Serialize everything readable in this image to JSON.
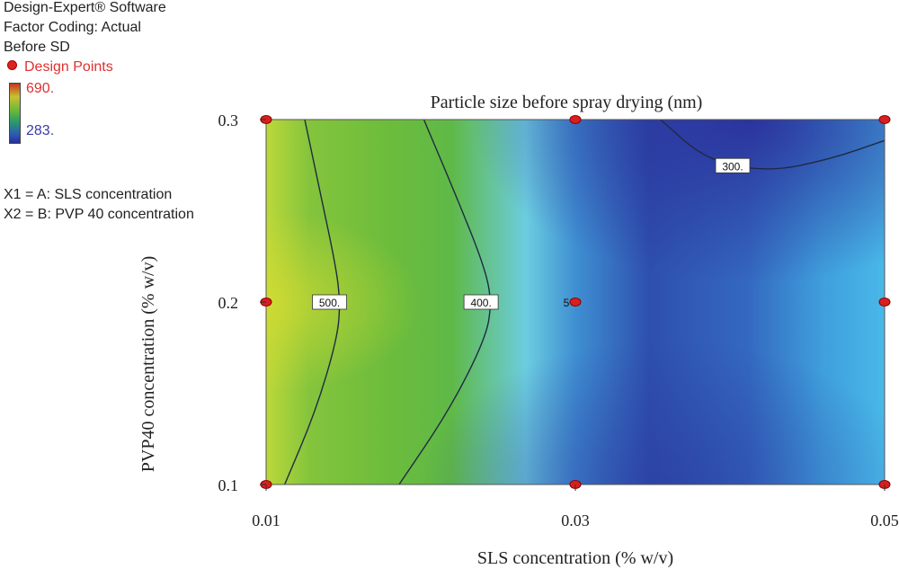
{
  "software_info": {
    "line1": "Design-Expert® Software",
    "line2": "Factor Coding: Actual",
    "line3": "Before SD"
  },
  "legend": {
    "design_points_label": "Design Points",
    "colorbar_max": "690.",
    "colorbar_min": "283.",
    "colorbar_colors": [
      "#c4361d",
      "#c9c130",
      "#6ab93a",
      "#2a9a6a",
      "#2b5db5",
      "#2a2e99"
    ]
  },
  "factor_mapping": {
    "x1": "X1 = A: SLS concentration",
    "x2": "X2 = B: PVP 40 concentration"
  },
  "chart_data": {
    "type": "heatmap",
    "title": "Particle size before spray drying (nm)",
    "xlabel": "SLS concentration  (% w/v)",
    "ylabel": "PVP40 concentration  (% w/v)",
    "xlim": [
      0.01,
      0.05
    ],
    "ylim": [
      0.1,
      0.3
    ],
    "x_ticks": [
      "0.01",
      "0.03",
      "0.05"
    ],
    "y_ticks": [
      "0.1",
      "0.2",
      "0.3"
    ],
    "z_range": [
      283,
      690
    ],
    "contours": [
      {
        "label": "500.",
        "value": 500,
        "points": [
          [
            0.0112,
            0.1
          ],
          [
            0.0132,
            0.14
          ],
          [
            0.0146,
            0.18
          ],
          [
            0.0148,
            0.2
          ],
          [
            0.0145,
            0.22
          ],
          [
            0.0135,
            0.26
          ],
          [
            0.0125,
            0.3
          ]
        ]
      },
      {
        "label": "400.",
        "value": 400,
        "points": [
          [
            0.0186,
            0.1
          ],
          [
            0.0218,
            0.14
          ],
          [
            0.0242,
            0.18
          ],
          [
            0.0246,
            0.2
          ],
          [
            0.0241,
            0.22
          ],
          [
            0.0222,
            0.26
          ],
          [
            0.0202,
            0.3
          ]
        ]
      },
      {
        "label": "300.",
        "value": 300,
        "points": [
          [
            0.0355,
            0.3
          ],
          [
            0.0385,
            0.2775
          ],
          [
            0.0425,
            0.2713
          ],
          [
            0.0465,
            0.2783
          ],
          [
            0.05,
            0.2885
          ]
        ]
      }
    ],
    "design_points": [
      {
        "x": 0.01,
        "y": 0.1
      },
      {
        "x": 0.01,
        "y": 0.2
      },
      {
        "x": 0.01,
        "y": 0.3
      },
      {
        "x": 0.03,
        "y": 0.1
      },
      {
        "x": 0.03,
        "y": 0.2,
        "count": "5"
      },
      {
        "x": 0.03,
        "y": 0.3
      },
      {
        "x": 0.05,
        "y": 0.1
      },
      {
        "x": 0.05,
        "y": 0.2
      },
      {
        "x": 0.05,
        "y": 0.3
      }
    ]
  }
}
